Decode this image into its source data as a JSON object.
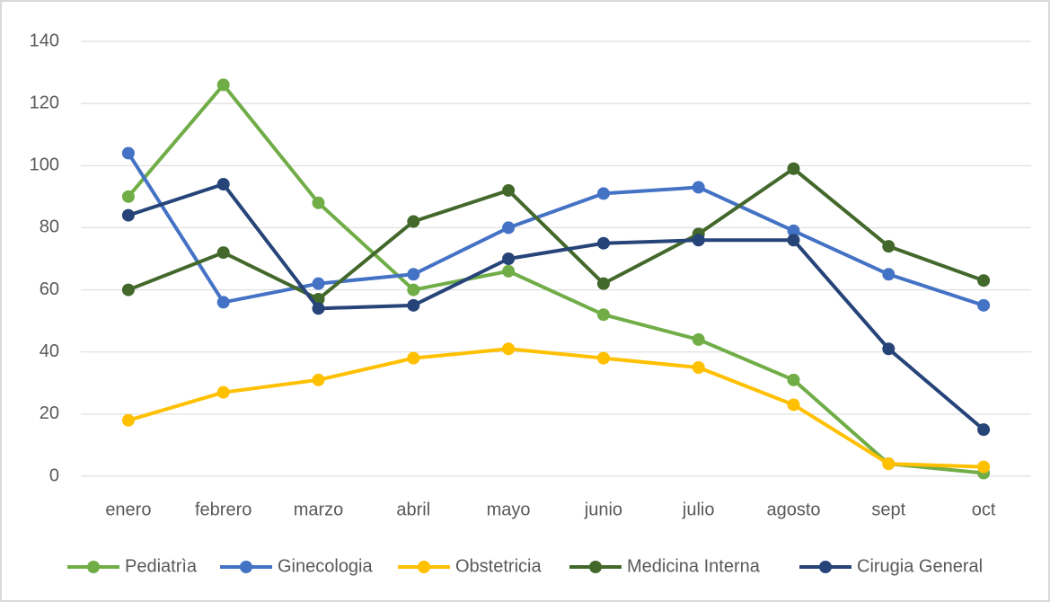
{
  "chart_data": {
    "type": "line",
    "categories": [
      "enero",
      "febrero",
      "marzo",
      "abril",
      "mayo",
      "junio",
      "julio",
      "agosto",
      "sept",
      "oct"
    ],
    "series": [
      {
        "name": "Pediatrìa",
        "color": "#70ad47",
        "values": [
          90,
          126,
          88,
          60,
          66,
          52,
          44,
          31,
          4,
          1
        ]
      },
      {
        "name": "Ginecologia",
        "color": "#4472c4",
        "values": [
          104,
          56,
          62,
          65,
          80,
          91,
          93,
          79,
          65,
          55
        ]
      },
      {
        "name": "Obstetricia",
        "color": "#ffc000",
        "values": [
          18,
          27,
          31,
          38,
          41,
          38,
          35,
          23,
          4,
          3
        ]
      },
      {
        "name": "Medicina Interna",
        "color": "#43682b",
        "values": [
          60,
          72,
          57,
          82,
          92,
          62,
          78,
          99,
          74,
          63
        ]
      },
      {
        "name": "Cirugia General",
        "color": "#264478",
        "values": [
          84,
          94,
          54,
          55,
          70,
          75,
          76,
          76,
          41,
          15
        ]
      }
    ],
    "ylim": [
      0,
      140
    ],
    "yticks": [
      0,
      20,
      40,
      60,
      80,
      100,
      120,
      140
    ],
    "grid": true,
    "legend": "bottom"
  }
}
